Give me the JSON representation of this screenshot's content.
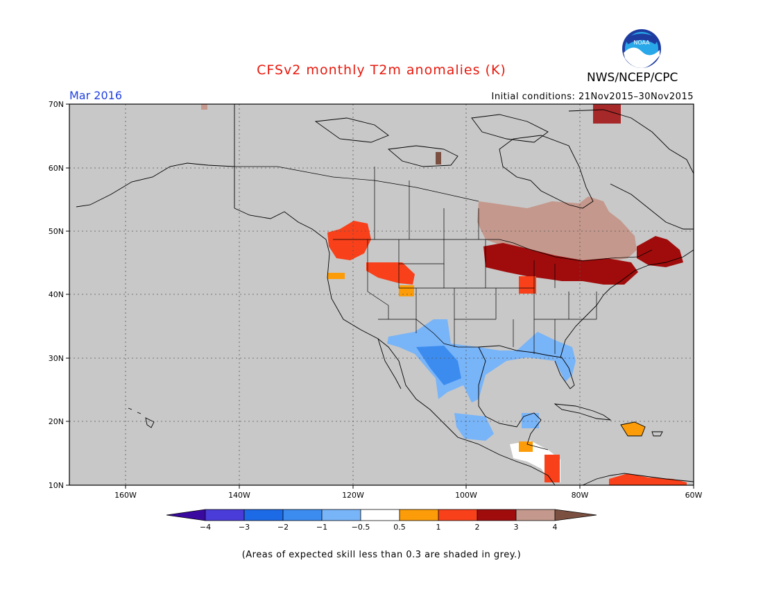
{
  "title": "CFSv2 monthly T2m anomalies (K)",
  "month": "Mar 2016",
  "agency": "NWS/NCEP/CPC",
  "initial_conditions": "Initial conditions: 21Nov2015–30Nov2015",
  "logo_text": "NOAA",
  "footnote": "(Areas of expected skill less than 0.3 are shaded in grey.)",
  "map": {
    "lat_labels": [
      "70N",
      "60N",
      "50N",
      "40N",
      "30N",
      "20N",
      "10N"
    ],
    "lon_labels": [
      "160W",
      "140W",
      "120W",
      "100W",
      "80W",
      "60W"
    ],
    "grey_shade": "#c8c8c8"
  },
  "colorbar": {
    "labels": [
      "−4",
      "−3",
      "−2",
      "−1",
      "−0.5",
      "0.5",
      "1",
      "2",
      "3",
      "4"
    ],
    "colors": [
      "#3a0aa0",
      "#4a3cd8",
      "#1c6ae6",
      "#3c8cf0",
      "#78b4f8",
      "#ffffff",
      "#fc9c08",
      "#f8401a",
      "#a00c0c",
      "#c4988c",
      "#7c5040"
    ]
  }
}
